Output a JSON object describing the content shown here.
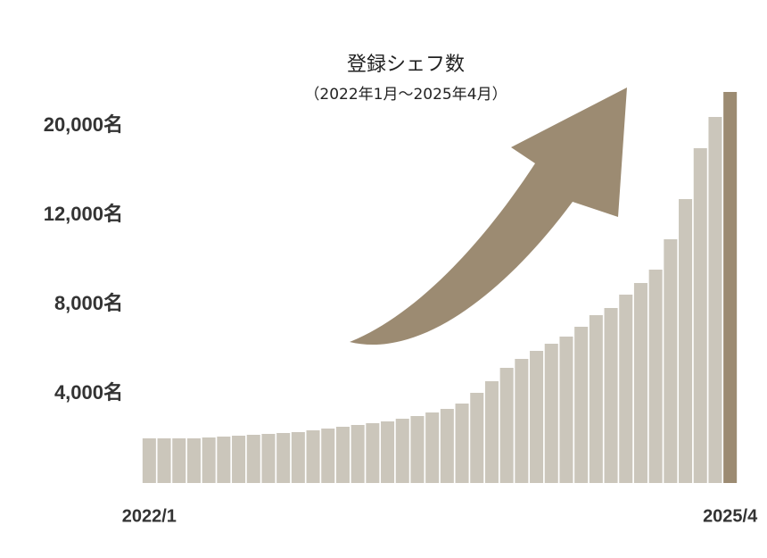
{
  "chart_data": {
    "type": "bar",
    "title": "登録シェフ数",
    "subtitle": "（2022年1月〜2025年4月）",
    "categories": [
      "2022/1",
      null,
      null,
      null,
      null,
      null,
      null,
      null,
      null,
      null,
      null,
      null,
      null,
      null,
      null,
      null,
      null,
      null,
      null,
      null,
      null,
      null,
      null,
      null,
      null,
      null,
      null,
      null,
      null,
      null,
      null,
      null,
      null,
      null,
      null,
      null,
      null,
      null,
      null,
      "2025/4"
    ],
    "values": [
      2000,
      2000,
      2000,
      2000,
      2040,
      2080,
      2120,
      2160,
      2200,
      2240,
      2280,
      2360,
      2440,
      2520,
      2600,
      2680,
      2760,
      2880,
      3000,
      3160,
      3320,
      3560,
      4040,
      4560,
      5160,
      5560,
      5920,
      6240,
      6560,
      7000,
      7520,
      7840,
      8440,
      8960,
      9560,
      10920,
      13440,
      18000,
      20800,
      23040
    ],
    "colors": [
      "#cbc6bb",
      "#cbc6bb",
      "#cbc6bb",
      "#cbc6bb",
      "#cbc6bb",
      "#cbc6bb",
      "#cbc6bb",
      "#cbc6bb",
      "#cbc6bb",
      "#cbc6bb",
      "#cbc6bb",
      "#cbc6bb",
      "#cbc6bb",
      "#cbc6bb",
      "#cbc6bb",
      "#cbc6bb",
      "#cbc6bb",
      "#cbc6bb",
      "#cbc6bb",
      "#cbc6bb",
      "#cbc6bb",
      "#cbc6bb",
      "#cbc6bb",
      "#cbc6bb",
      "#cbc6bb",
      "#cbc6bb",
      "#cbc6bb",
      "#cbc6bb",
      "#cbc6bb",
      "#cbc6bb",
      "#cbc6bb",
      "#cbc6bb",
      "#cbc6bb",
      "#cbc6bb",
      "#cbc6bb",
      "#cbc6bb",
      "#cbc6bb",
      "#cbc6bb",
      "#cbc6bb",
      "#9c8b72"
    ],
    "ylim": [
      0,
      24000
    ],
    "yticks": [
      {
        "value": 4000,
        "label": "4,000名"
      },
      {
        "value": 8000,
        "label": "8,000名"
      },
      {
        "value": 12000,
        "label": "12,000名"
      },
      {
        "value": 20000,
        "label": "20,000名"
      }
    ],
    "grid": false
  }
}
